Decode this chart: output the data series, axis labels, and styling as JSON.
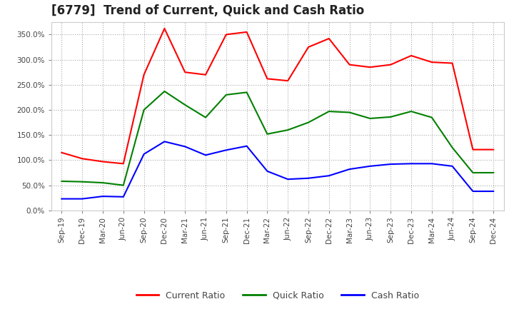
{
  "title": "[6779]  Trend of Current, Quick and Cash Ratio",
  "x_labels": [
    "Sep-19",
    "Dec-19",
    "Mar-20",
    "Jun-20",
    "Sep-20",
    "Dec-20",
    "Mar-21",
    "Jun-21",
    "Sep-21",
    "Dec-21",
    "Mar-22",
    "Jun-22",
    "Sep-22",
    "Dec-22",
    "Mar-23",
    "Jun-23",
    "Sep-23",
    "Dec-23",
    "Mar-24",
    "Jun-24",
    "Sep-24",
    "Dec-24"
  ],
  "current_ratio": [
    115,
    103,
    97,
    93,
    270,
    362,
    275,
    270,
    350,
    355,
    262,
    258,
    325,
    342,
    290,
    285,
    290,
    308,
    295,
    293,
    121,
    121
  ],
  "quick_ratio": [
    58,
    57,
    55,
    50,
    200,
    237,
    210,
    185,
    230,
    235,
    152,
    160,
    175,
    197,
    195,
    183,
    186,
    197,
    185,
    125,
    75,
    75
  ],
  "cash_ratio": [
    23,
    23,
    28,
    27,
    112,
    137,
    127,
    110,
    120,
    128,
    78,
    62,
    64,
    69,
    82,
    88,
    92,
    93,
    93,
    88,
    38,
    38
  ],
  "current_color": "#FF0000",
  "quick_color": "#008000",
  "cash_color": "#0000FF",
  "ylim": [
    0,
    375
  ],
  "yticks": [
    0,
    50,
    100,
    150,
    200,
    250,
    300,
    350
  ],
  "background_color": "#FFFFFF",
  "grid_color": "#AAAAAA",
  "title_fontsize": 12,
  "tick_fontsize": 7.5,
  "legend_fontsize": 9,
  "legend_labels": [
    "Current Ratio",
    "Quick Ratio",
    "Cash Ratio"
  ],
  "linewidth": 1.5
}
